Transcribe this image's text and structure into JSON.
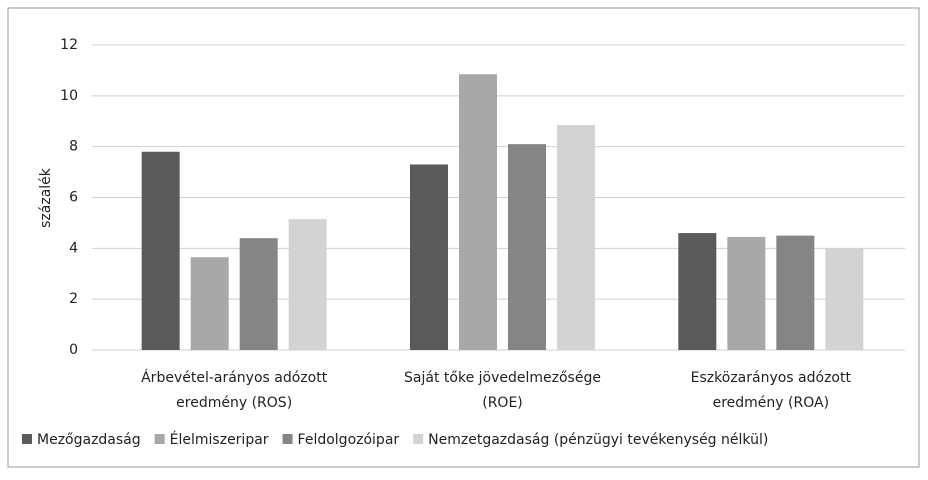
{
  "chart_data": {
    "type": "bar",
    "y_label": "százalék",
    "categories": [
      [
        "Árbevétel-arányos adózott",
        "eredmény (ROS)"
      ],
      [
        "Saját tőke jövedelmezősége",
        "(ROE)"
      ],
      [
        "Eszközarányos adózott",
        "eredmény (ROA)"
      ]
    ],
    "series": [
      {
        "name": "Mezőgazdaság",
        "color": "#5a5a5a",
        "values": [
          7.8,
          7.3,
          4.6
        ]
      },
      {
        "name": "Élelmiszeripar",
        "color": "#a8a8a8",
        "values": [
          3.65,
          10.85,
          4.45
        ]
      },
      {
        "name": "Feldolgozóipar",
        "color": "#858585",
        "values": [
          4.4,
          8.1,
          4.5
        ]
      },
      {
        "name": "Nemzetgazdaság (pénzügyi tevékenység nélkül)",
        "color": "#d3d3d3",
        "values": [
          5.15,
          8.85,
          4.0
        ]
      }
    ],
    "ylim": [
      0,
      12
    ],
    "yticks": [
      0,
      2,
      4,
      6,
      8,
      10,
      12
    ],
    "grid": true,
    "legend": "bottom"
  }
}
